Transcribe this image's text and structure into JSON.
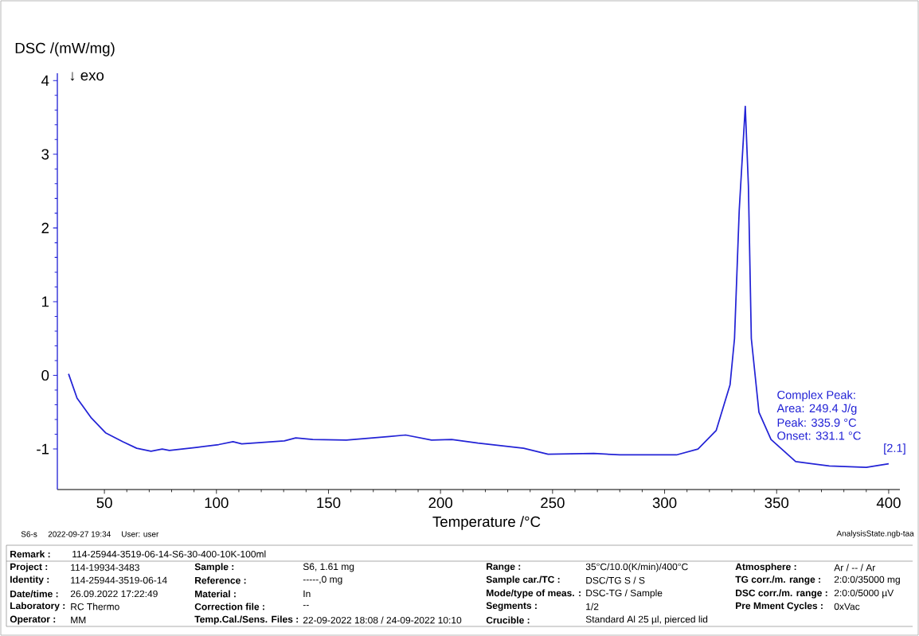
{
  "chart_data": {
    "type": "line",
    "xlabel": "Temperature /°C",
    "ylabel": "DSC /(mW/mg)",
    "x": [
      34,
      37.8,
      44.2,
      50.5,
      58.1,
      64.4,
      70.8,
      75.8,
      79,
      91,
      101,
      107.4,
      111.3,
      130.3,
      135.4,
      143,
      158,
      177.2,
      184.4,
      196,
      205,
      216.7,
      237.1,
      248,
      268.4,
      280,
      305.3,
      314.9,
      323,
      329.2,
      331.2,
      333.3,
      336,
      337.4,
      338.7,
      342.1,
      347.5,
      358.5,
      373.5,
      390,
      400
    ],
    "values": [
      0.02,
      -0.31,
      -0.58,
      -0.78,
      -0.9,
      -0.99,
      -1.03,
      -1.0,
      -1.02,
      -0.98,
      -0.94,
      -0.9,
      -0.93,
      -0.89,
      -0.85,
      -0.87,
      -0.88,
      -0.83,
      -0.81,
      -0.88,
      -0.87,
      -0.92,
      -0.99,
      -1.07,
      -1.06,
      -1.08,
      -1.08,
      -1.0,
      -0.75,
      -0.13,
      0.5,
      2.24,
      3.65,
      2.57,
      0.5,
      -0.5,
      -0.87,
      -1.17,
      -1.23,
      -1.25,
      -1.2
    ],
    "color": "#2323d6",
    "xlim": [
      29,
      405
    ],
    "ylim": [
      -1.55,
      4.1
    ],
    "xticks": [
      50,
      100,
      150,
      200,
      250,
      300,
      350,
      400
    ],
    "yticks": [
      -1,
      0,
      1,
      2,
      3,
      4
    ],
    "annotations": [
      "↓ exo",
      "Complex Peak:",
      "Area:   249.4 J/g",
      "Peak:   335.9 °C",
      "Onset:  331.1 °C",
      "[2.1]",
      "S6-s",
      "2022-09-27 19:34",
      "User: user",
      "AnalysisState.ngb-taa",
      "Remark :",
      "114-25944-3519-06-14-S6-30-400-10K-100ml",
      "Project :",
      "114-19934-3483",
      "Identity :",
      "114-25944-3519-06-14",
      "Date/time :",
      "26.09.2022 17:22:49",
      "Laboratory :",
      "RC Thermo",
      "Operator :",
      "MM",
      "Sample :",
      "S6, 1.61 mg",
      "Reference :",
      "-----,0 mg",
      "Material :",
      "In",
      "Correction file :",
      "--",
      "Temp.Cal./Sens. Files :",
      "22-09-2022 18:08 / 24-09-2022 10:10",
      "Range :",
      "35°C/10.0(K/min)/400°C",
      "Sample car./TC :",
      "DSC/TG S / S",
      "Mode/type of meas. :",
      "DSC-TG / Sample",
      "Segments :",
      "1/2",
      "Crucible :",
      "Standard Al 25 µl, pierced lid",
      "Atmosphere :",
      "Ar / -- / Ar",
      "TG corr./m. range :",
      "2:0:0/35000 mg",
      "DSC corr./m. range :",
      "2:0:0/5000 µV",
      "Pre Mment Cycles :",
      "0xVac"
    ]
  }
}
